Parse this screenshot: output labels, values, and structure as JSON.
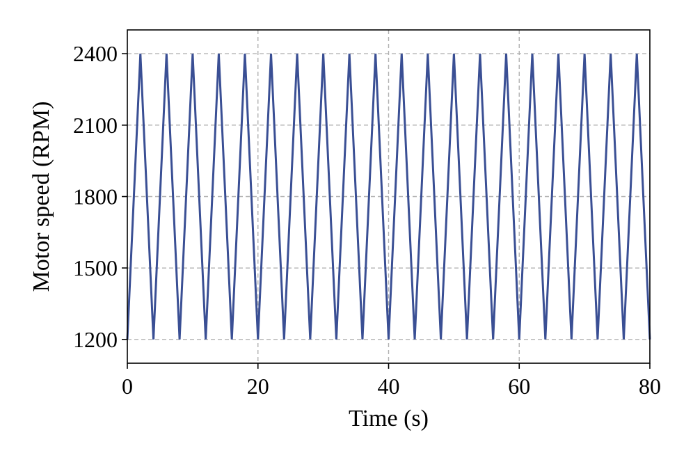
{
  "chart_data": {
    "type": "line",
    "title": "",
    "xlabel": "Time (s)",
    "ylabel": "Motor speed (RPM)",
    "xlim": [
      0,
      80
    ],
    "ylim": [
      1100,
      2500
    ],
    "xticks": [
      0,
      20,
      40,
      60,
      80
    ],
    "yticks": [
      1200,
      1500,
      1800,
      2100,
      2400
    ],
    "xtick_labels": [
      "0",
      "20",
      "40",
      "60",
      "80"
    ],
    "ytick_labels": [
      "1200",
      "1500",
      "1800",
      "2100",
      "2400"
    ],
    "grid": true,
    "legend": "none",
    "series": [
      {
        "color": "#3a4f94",
        "x": [
          0,
          2,
          4,
          6,
          8,
          10,
          12,
          14,
          16,
          18,
          20,
          22,
          24,
          26,
          28,
          30,
          32,
          34,
          36,
          38,
          40,
          42,
          44,
          46,
          48,
          50,
          52,
          54,
          56,
          58,
          60,
          62,
          64,
          66,
          68,
          70,
          72,
          74,
          76,
          78,
          80
        ],
        "y": [
          1200,
          2400,
          1200,
          2400,
          1200,
          2400,
          1200,
          2400,
          1200,
          2400,
          1200,
          2400,
          1200,
          2400,
          1200,
          2400,
          1200,
          2400,
          1200,
          2400,
          1200,
          2400,
          1200,
          2400,
          1200,
          2400,
          1200,
          2400,
          1200,
          2400,
          1200,
          2400,
          1200,
          2400,
          1200,
          2400,
          1200,
          2400,
          1200,
          2400,
          1200
        ]
      }
    ]
  }
}
